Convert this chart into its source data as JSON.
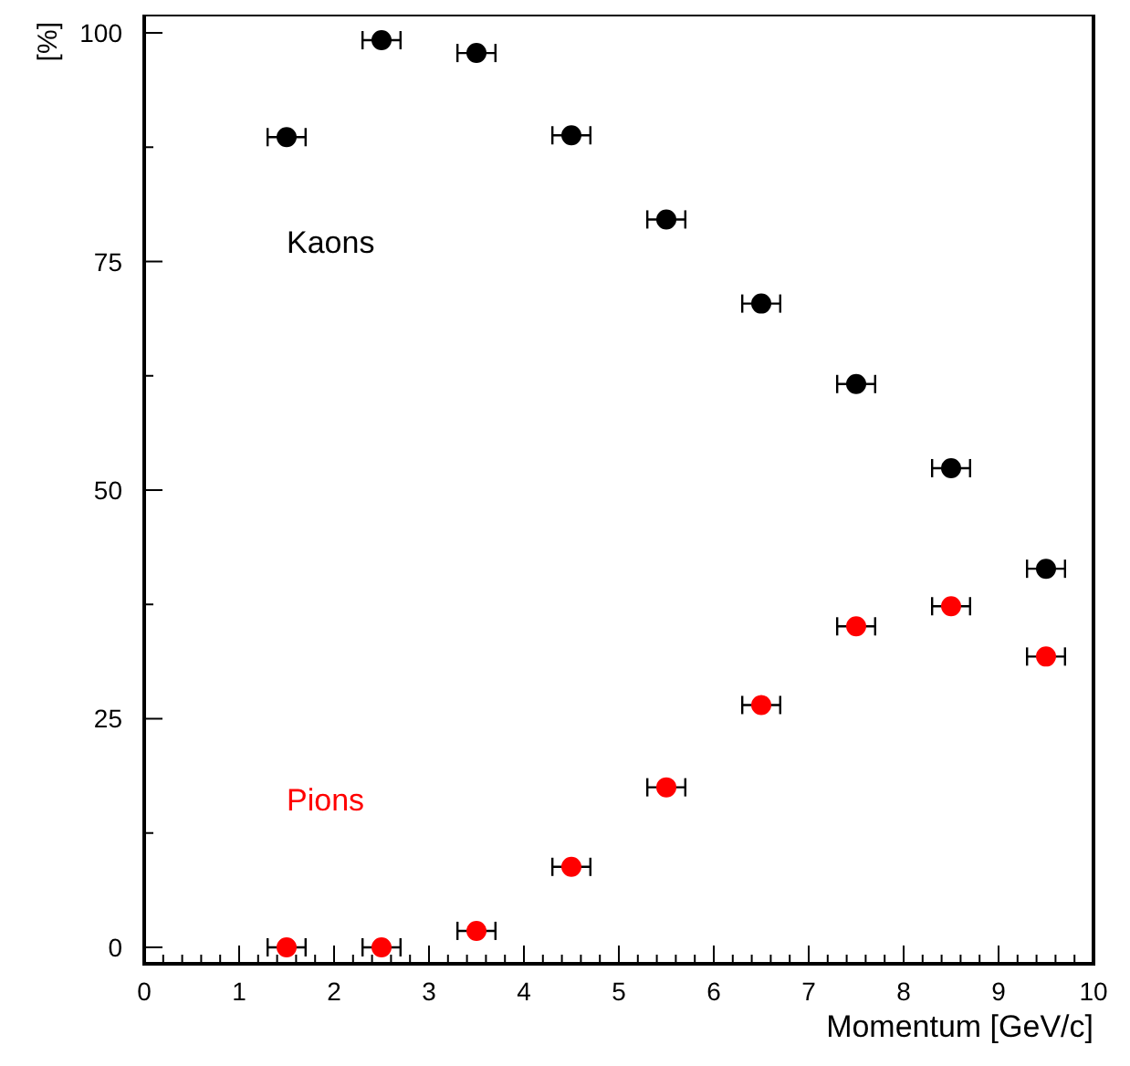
{
  "chart_data": {
    "type": "scatter",
    "xlabel": "Momentum [GeV/c]",
    "ylabel": "[%]",
    "x": [
      1.5,
      2.5,
      3.5,
      4.5,
      5.5,
      6.5,
      7.5,
      8.5,
      9.5
    ],
    "series": [
      {
        "name": "Kaons",
        "color": "#000000",
        "values": [
          88.6,
          99.2,
          97.8,
          88.8,
          79.6,
          70.4,
          61.6,
          52.4,
          41.4
        ],
        "xerrors": [
          0.2,
          0.2,
          0.2,
          0.2,
          0.2,
          0.2,
          0.2,
          0.2,
          0.2
        ]
      },
      {
        "name": "Pions",
        "color": "#ff0000",
        "values": [
          0,
          0,
          1.8,
          8.8,
          17.5,
          26.5,
          35.1,
          37.3,
          31.8
        ],
        "xerrors": [
          0.2,
          0.2,
          0.2,
          0.2,
          0.2,
          0.2,
          0.2,
          0.2,
          0.2
        ]
      }
    ],
    "xlim": [
      0,
      10
    ],
    "xticks": [
      0,
      {
        "value": 0.2,
        "label": null
      },
      {
        "value": 0.4,
        "label": null
      },
      {
        "value": 0.6,
        "label": null
      },
      {
        "value": 0.8,
        "label": null
      },
      1,
      {
        "value": 1.2,
        "label": null
      },
      {
        "value": 1.4,
        "label": null
      },
      {
        "value": 1.6,
        "label": null
      },
      {
        "value": 1.8,
        "label": null
      },
      2,
      {
        "value": 2.2,
        "label": null
      },
      {
        "value": 2.4,
        "label": null
      },
      {
        "value": 2.6,
        "label": null
      },
      {
        "value": 2.8,
        "label": null
      },
      3,
      {
        "value": 3.2,
        "label": null
      },
      {
        "value": 3.4,
        "label": null
      },
      {
        "value": 3.6,
        "label": null
      },
      {
        "value": 3.8,
        "label": null
      },
      4,
      {
        "value": 4.2,
        "label": null
      },
      {
        "value": 4.4,
        "label": null
      },
      {
        "value": 4.6,
        "label": null
      },
      {
        "value": 4.8,
        "label": null
      },
      5,
      {
        "value": 5.2,
        "label": null
      },
      {
        "value": 5.4,
        "label": null
      },
      {
        "value": 5.6,
        "label": null
      },
      {
        "value": 5.8,
        "label": null
      },
      6,
      {
        "value": 6.2,
        "label": null
      },
      {
        "value": 6.4,
        "label": null
      },
      {
        "value": 6.6,
        "label": null
      },
      {
        "value": 6.8,
        "label": null
      },
      7,
      {
        "value": 7.2,
        "label": null
      },
      {
        "value": 7.4,
        "label": null
      },
      {
        "value": 7.6,
        "label": null
      },
      {
        "value": 7.8,
        "label": null
      },
      8,
      {
        "value": 8.2,
        "label": null
      },
      {
        "value": 8.4,
        "label": null
      },
      {
        "value": 8.6,
        "label": null
      },
      {
        "value": 8.8,
        "label": null
      },
      9,
      {
        "value": 9.2,
        "label": null
      },
      {
        "value": 9.4,
        "label": null
      },
      {
        "value": 9.6,
        "label": null
      },
      {
        "value": 9.8,
        "label": null
      },
      10
    ],
    "ylim": [
      -1.8,
      102
    ],
    "yticks": [
      0,
      {
        "value": 12.5,
        "label": null
      },
      25,
      {
        "value": 37.5,
        "label": null
      },
      50,
      {
        "value": 62.5,
        "label": null
      },
      75,
      {
        "value": 87.5,
        "label": null
      },
      100
    ],
    "grid": false,
    "legend": false,
    "marker": "circle"
  }
}
